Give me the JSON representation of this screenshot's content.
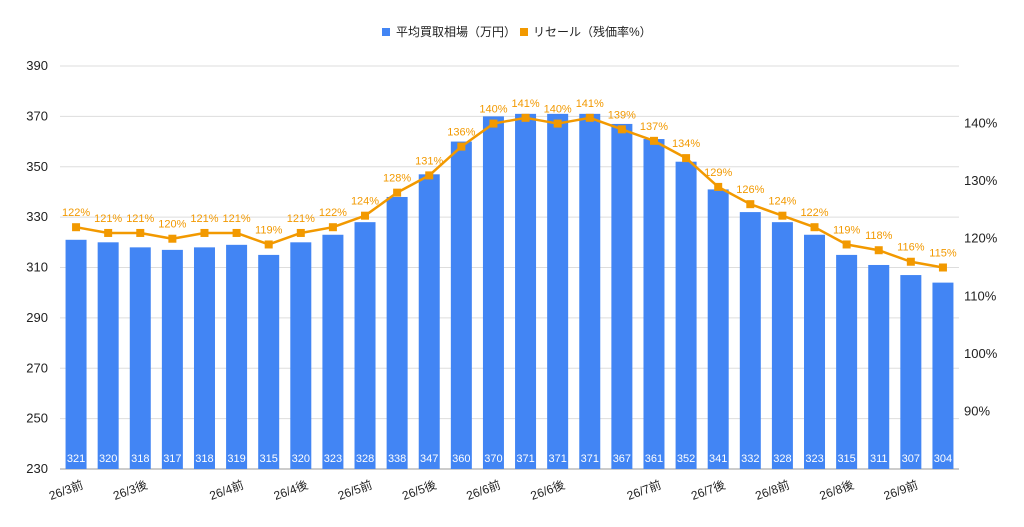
{
  "chart_data": {
    "type": "bar",
    "title": "",
    "xlabel": "",
    "ylabel": "",
    "x": [
      "26/3前",
      "",
      "26/3後",
      "",
      "",
      "26/4前",
      "",
      "26/4後",
      "",
      "26/5前",
      "",
      "26/5後",
      "",
      "26/6前",
      "",
      "26/6後",
      "",
      "",
      "26/7前",
      "",
      "26/7後",
      "",
      "26/8前",
      "",
      "26/8後",
      "",
      "26/9前",
      ""
    ],
    "ylim": [
      230,
      390
    ],
    "y_ticks": [
      "230",
      "250",
      "270",
      "290",
      "310",
      "330",
      "350",
      "370",
      "390"
    ],
    "y2lim": [
      80,
      150
    ],
    "y2_ticks": [
      "90%",
      "100%",
      "110%",
      "120%",
      "130%",
      "140%"
    ],
    "legend_position": "top-center",
    "grid": true,
    "colors": {
      "bar": "#4285F4",
      "line": "#F29900",
      "grid": "#dddddd"
    },
    "series": [
      {
        "name": "平均買取相場（万円）",
        "type": "bar",
        "axis": "left",
        "values": [
          321,
          320,
          318,
          317,
          318,
          319,
          315,
          320,
          323,
          328,
          338,
          347,
          360,
          370,
          371,
          371,
          371,
          367,
          361,
          352,
          341,
          332,
          328,
          323,
          315,
          311,
          307,
          304
        ],
        "labels": [
          "321",
          "320",
          "318",
          "317",
          "318",
          "319",
          "315",
          "320",
          "323",
          "328",
          "338",
          "347",
          "360",
          "370",
          "371",
          "371",
          "371",
          "367",
          "361",
          "352",
          "341",
          "332",
          "328",
          "323",
          "315",
          "311",
          "307",
          "304"
        ]
      },
      {
        "name": "リセール（残価率%）",
        "type": "line",
        "axis": "right",
        "values": [
          122,
          121,
          121,
          120,
          121,
          121,
          119,
          121,
          122,
          124,
          128,
          131,
          136,
          140,
          141,
          140,
          141,
          139,
          137,
          134,
          129,
          126,
          124,
          122,
          119,
          118,
          116,
          115
        ],
        "labels": [
          "122%",
          "121%",
          "121%",
          "120%",
          "121%",
          "121%",
          "119%",
          "121%",
          "122%",
          "124%",
          "128%",
          "131%",
          "136%",
          "140%",
          "141%",
          "140%",
          "141%",
          "139%",
          "137%",
          "134%",
          "129%",
          "126%",
          "124%",
          "122%",
          "119%",
          "118%",
          "116%",
          "115%"
        ]
      }
    ]
  }
}
